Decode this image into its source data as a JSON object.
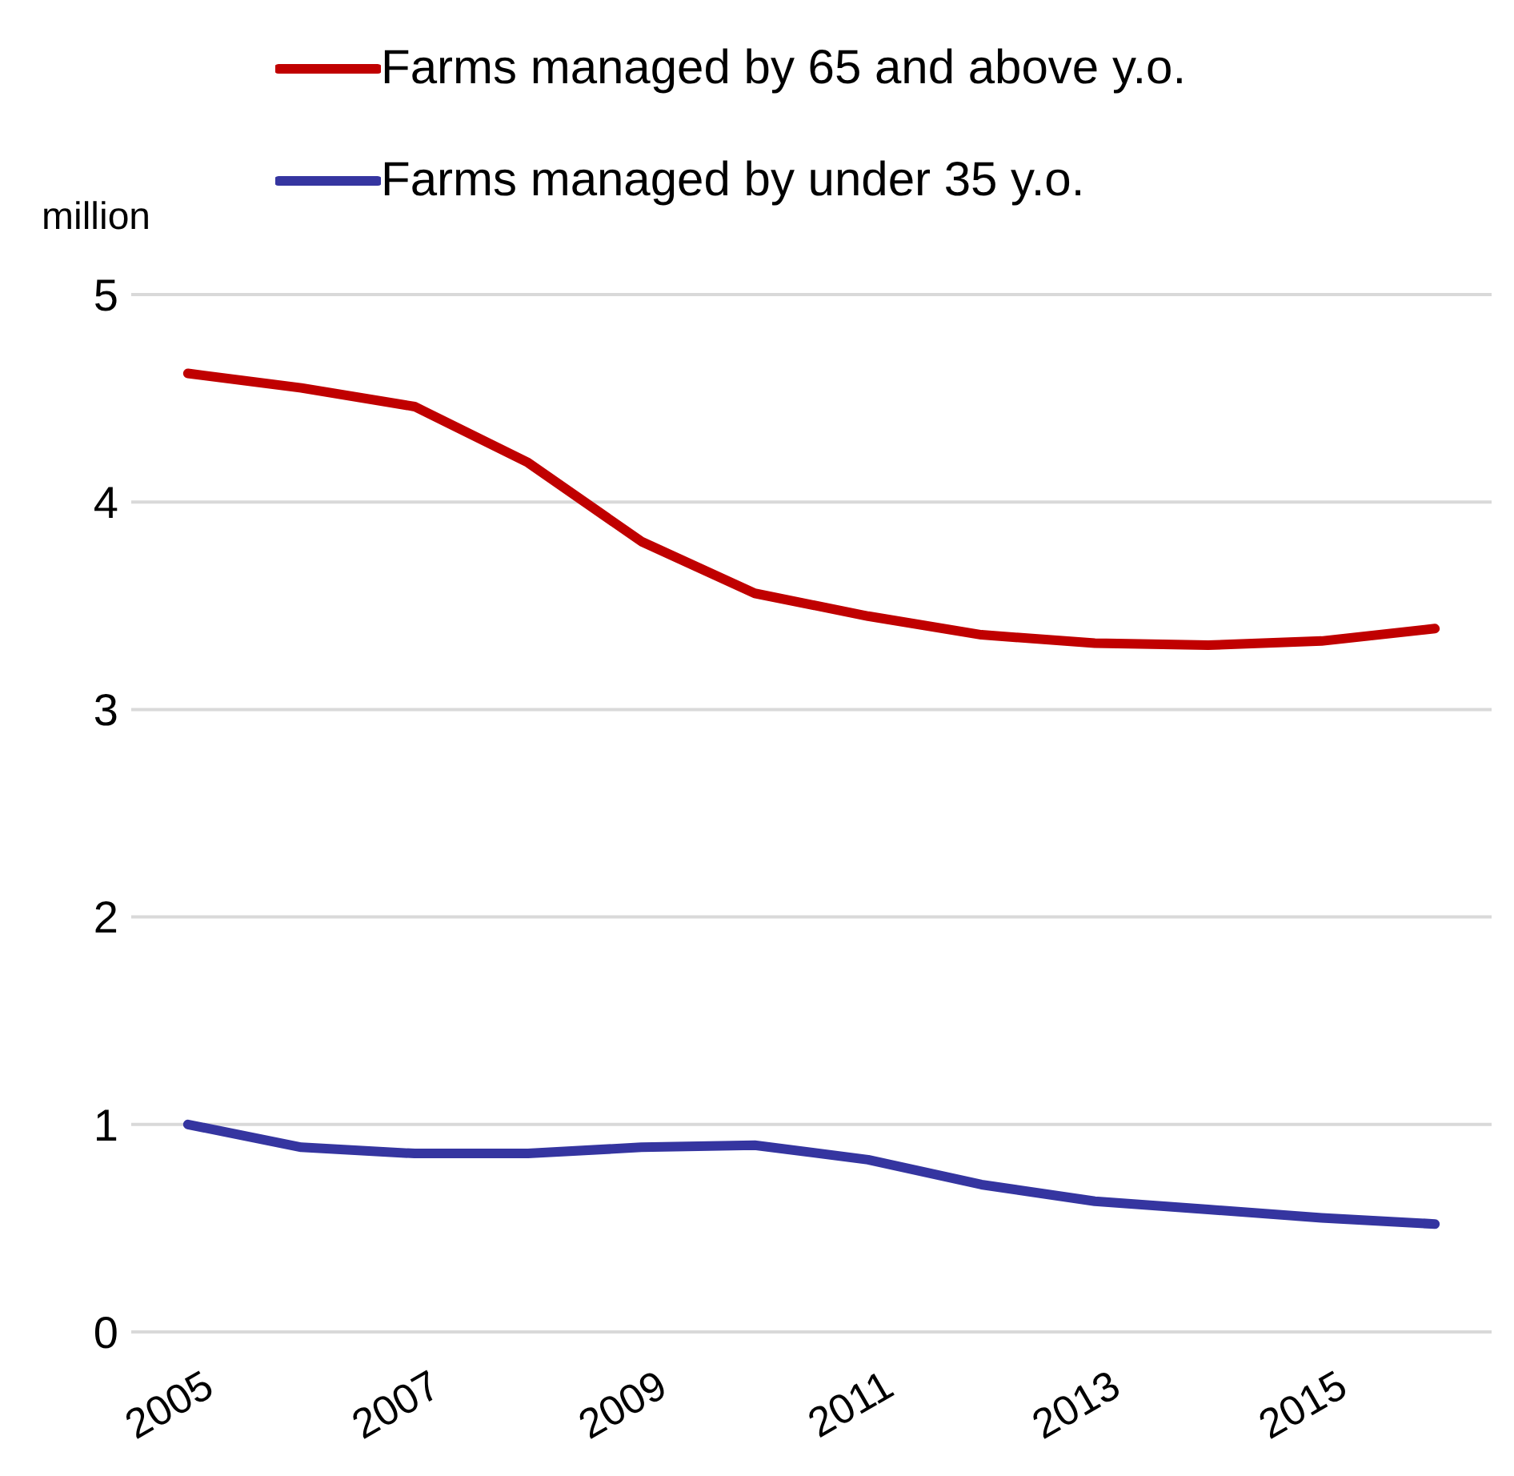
{
  "chart_data": {
    "type": "line",
    "annotations": [
      "million"
    ],
    "categories": [
      "2005",
      null,
      "2007",
      null,
      "2009",
      null,
      "2011",
      null,
      "2013",
      null,
      "2015",
      null
    ],
    "series": [
      {
        "name": "Farms managed by 65 and above y.o.",
        "color": "#c00000",
        "values": [
          4.62,
          4.55,
          4.46,
          4.19,
          3.81,
          3.56,
          3.45,
          3.36,
          3.32,
          3.31,
          3.33,
          3.39
        ]
      },
      {
        "name": "Farms managed by under 35 y.o.",
        "color": "#3535a0",
        "values": [
          1.0,
          0.89,
          0.86,
          0.86,
          0.89,
          0.9,
          0.83,
          0.71,
          0.63,
          0.59,
          0.55,
          0.52
        ]
      }
    ],
    "ylim": [
      0,
      5
    ],
    "yticks": [
      0,
      1,
      2,
      3,
      4,
      5
    ],
    "grid": "y",
    "legend": "top",
    "marker": "none",
    "line_style": "solid"
  }
}
